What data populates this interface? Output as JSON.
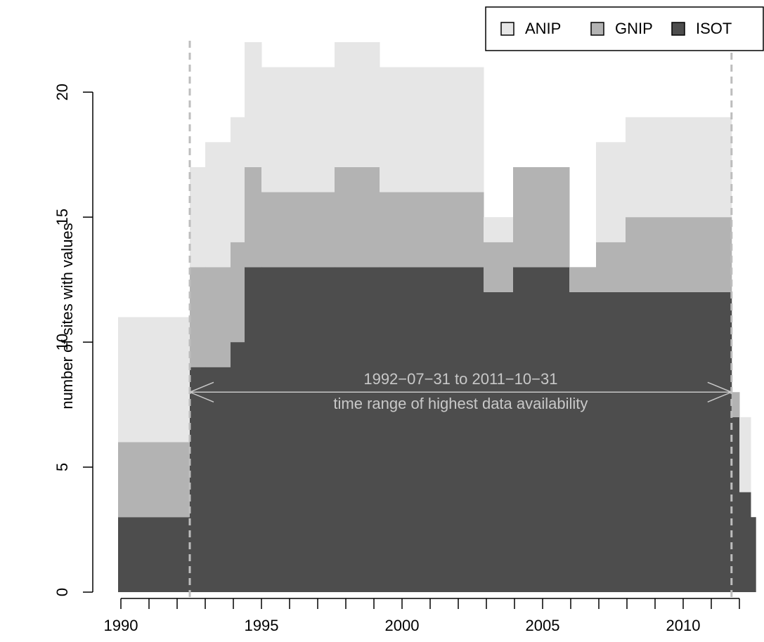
{
  "chart_data": {
    "type": "stacked-histogram",
    "ylabel": "number of sites with values",
    "bins": [
      1989.9,
      1992.45,
      1993.0,
      1993.9,
      1994.4,
      1995.0,
      1997.6,
      1999.2,
      2002.9,
      2003.95,
      2005.95,
      2006.9,
      2007.95,
      2011.72,
      2012.0,
      2012.4,
      2012.58
    ],
    "series": [
      {
        "name": "ANIP",
        "color": "#e6e6e6",
        "values": [
          5,
          4,
          5,
          5,
          5,
          5,
          5,
          5,
          1,
          0,
          0,
          4,
          4,
          0,
          3,
          0
        ]
      },
      {
        "name": "GNIP",
        "color": "#b3b3b3",
        "values": [
          3,
          4,
          4,
          4,
          4,
          3,
          4,
          3,
          2,
          4,
          1,
          2,
          3,
          1,
          0,
          0
        ]
      },
      {
        "name": "ISOT",
        "color": "#4d4d4d",
        "values": [
          3,
          9,
          9,
          10,
          13,
          13,
          13,
          13,
          12,
          13,
          12,
          12,
          12,
          7,
          4,
          3
        ]
      }
    ],
    "xlim": [
      1989.1,
      2012.85
    ],
    "ylim": [
      0,
      22
    ],
    "xticks": [
      1990,
      1995,
      2000,
      2005,
      2010
    ],
    "xminor_ticks": [
      1991,
      1992,
      1993,
      1994,
      1996,
      1997,
      1998,
      1999,
      2001,
      2002,
      2003,
      2004,
      2006,
      2007,
      2008,
      2009,
      2011,
      2012
    ],
    "yticks": [
      0,
      5,
      10,
      15,
      20
    ],
    "reference_lines": [
      1992.45,
      2011.72
    ],
    "annotation": {
      "y": 8,
      "lines": [
        "1992−07−31 to 2011−10−31",
        "time range of highest data availability"
      ]
    },
    "legend": "top-right"
  }
}
